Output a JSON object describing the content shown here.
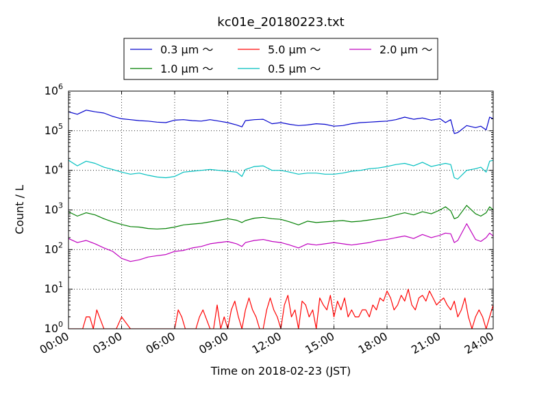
{
  "chart_data": {
    "type": "line",
    "title": "kc01e_20180223.txt",
    "xlabel": "Time on 2018-02-23 (JST)",
    "ylabel": "Count / L",
    "y_scale": "log",
    "xlim": [
      0,
      24
    ],
    "ylim": [
      1,
      1000000
    ],
    "grid": true,
    "legend_position": "top-center",
    "x_tick_labels": [
      "00:00",
      "03:00",
      "06:00",
      "09:00",
      "12:00",
      "15:00",
      "18:00",
      "21:00",
      "24:00"
    ],
    "y_tick_bases": [
      "10",
      "10",
      "10",
      "10",
      "10",
      "10",
      "10"
    ],
    "y_tick_exponents": [
      "0",
      "1",
      "2",
      "3",
      "4",
      "5",
      "6"
    ],
    "legend_order": [
      0,
      2,
      4,
      1,
      3
    ],
    "series": [
      {
        "name": "0.3 μm ～",
        "color": "#0000cc",
        "x": [
          0.0,
          0.5,
          1.0,
          1.5,
          2.0,
          2.5,
          3.0,
          3.5,
          4.0,
          4.5,
          5.0,
          5.5,
          6.0,
          6.5,
          7.0,
          7.5,
          8.0,
          8.5,
          9.0,
          9.5,
          9.8,
          10.0,
          10.5,
          11.0,
          11.5,
          12.0,
          12.5,
          13.0,
          13.5,
          14.0,
          14.5,
          15.0,
          15.5,
          16.0,
          16.5,
          17.0,
          17.5,
          18.0,
          18.5,
          19.0,
          19.5,
          20.0,
          20.5,
          21.0,
          21.3,
          21.6,
          21.8,
          22.0,
          22.5,
          23.0,
          23.3,
          23.6,
          23.8,
          24.0
        ],
        "y": [
          300000,
          260000,
          330000,
          300000,
          280000,
          230000,
          200000,
          190000,
          180000,
          175000,
          165000,
          160000,
          185000,
          190000,
          180000,
          175000,
          190000,
          175000,
          160000,
          140000,
          125000,
          180000,
          190000,
          195000,
          150000,
          160000,
          145000,
          135000,
          140000,
          150000,
          145000,
          130000,
          135000,
          150000,
          160000,
          165000,
          170000,
          175000,
          190000,
          220000,
          195000,
          210000,
          185000,
          200000,
          160000,
          190000,
          85000,
          90000,
          135000,
          120000,
          130000,
          105000,
          220000,
          200000
        ]
      },
      {
        "name": "0.5 μm ～",
        "color": "#00bfbf",
        "x": [
          0.0,
          0.5,
          1.0,
          1.5,
          2.0,
          2.5,
          3.0,
          3.5,
          4.0,
          4.5,
          5.0,
          5.5,
          6.0,
          6.5,
          7.0,
          7.5,
          8.0,
          8.5,
          9.0,
          9.5,
          9.8,
          10.0,
          10.5,
          11.0,
          11.5,
          12.0,
          12.5,
          13.0,
          13.5,
          14.0,
          14.5,
          15.0,
          15.5,
          16.0,
          16.5,
          17.0,
          17.5,
          18.0,
          18.5,
          19.0,
          19.5,
          20.0,
          20.5,
          21.0,
          21.3,
          21.6,
          21.8,
          22.0,
          22.5,
          23.0,
          23.3,
          23.6,
          23.8,
          24.0
        ],
        "y": [
          18000,
          13000,
          17000,
          15000,
          12000,
          10500,
          9000,
          8000,
          8500,
          7500,
          6800,
          6500,
          7000,
          9000,
          9500,
          10000,
          10500,
          10000,
          9500,
          9000,
          7000,
          10500,
          12500,
          13000,
          10000,
          10000,
          9000,
          8000,
          8500,
          8500,
          8000,
          8000,
          8500,
          9500,
          10000,
          11000,
          11500,
          12500,
          14000,
          15000,
          13000,
          16000,
          12500,
          14000,
          15000,
          14000,
          6500,
          6000,
          10000,
          11000,
          12000,
          9000,
          17000,
          18000
        ]
      },
      {
        "name": "1.0 μm ～",
        "color": "#007f00",
        "x": [
          0.0,
          0.5,
          1.0,
          1.5,
          2.0,
          2.5,
          3.0,
          3.5,
          4.0,
          4.5,
          5.0,
          5.5,
          6.0,
          6.5,
          7.0,
          7.5,
          8.0,
          8.5,
          9.0,
          9.5,
          9.8,
          10.0,
          10.5,
          11.0,
          11.5,
          12.0,
          12.5,
          13.0,
          13.5,
          14.0,
          14.5,
          15.0,
          15.5,
          16.0,
          16.5,
          17.0,
          17.5,
          18.0,
          18.5,
          19.0,
          19.5,
          20.0,
          20.5,
          21.0,
          21.3,
          21.6,
          21.8,
          22.0,
          22.5,
          23.0,
          23.3,
          23.6,
          23.8,
          24.0
        ],
        "y": [
          900,
          700,
          850,
          750,
          600,
          500,
          430,
          380,
          370,
          340,
          330,
          340,
          370,
          420,
          440,
          460,
          500,
          550,
          600,
          550,
          480,
          540,
          620,
          650,
          600,
          580,
          500,
          420,
          520,
          480,
          500,
          520,
          540,
          500,
          520,
          560,
          600,
          650,
          750,
          850,
          750,
          900,
          800,
          1000,
          1200,
          950,
          600,
          650,
          1300,
          800,
          700,
          850,
          1200,
          1000
        ]
      },
      {
        "name": "2.0 μm ～",
        "color": "#bf00bf",
        "x": [
          0.0,
          0.5,
          1.0,
          1.5,
          2.0,
          2.5,
          3.0,
          3.5,
          4.0,
          4.5,
          5.0,
          5.5,
          6.0,
          6.5,
          7.0,
          7.5,
          8.0,
          8.5,
          9.0,
          9.5,
          9.8,
          10.0,
          10.5,
          11.0,
          11.5,
          12.0,
          12.5,
          13.0,
          13.5,
          14.0,
          14.5,
          15.0,
          15.5,
          16.0,
          16.5,
          17.0,
          17.5,
          18.0,
          18.5,
          19.0,
          19.5,
          20.0,
          20.5,
          21.0,
          21.3,
          21.6,
          21.8,
          22.0,
          22.5,
          23.0,
          23.3,
          23.6,
          23.8,
          24.0
        ],
        "y": [
          190,
          150,
          170,
          140,
          110,
          90,
          60,
          50,
          55,
          65,
          70,
          75,
          90,
          95,
          110,
          120,
          140,
          150,
          160,
          140,
          120,
          150,
          170,
          180,
          160,
          150,
          130,
          110,
          140,
          130,
          140,
          150,
          140,
          130,
          140,
          150,
          170,
          180,
          200,
          220,
          190,
          240,
          200,
          230,
          260,
          250,
          150,
          170,
          450,
          180,
          160,
          200,
          260,
          220
        ]
      },
      {
        "name": "5.0 μm ～",
        "color": "#ff0000",
        "x": [
          0.0,
          0.5,
          0.8,
          1.0,
          1.2,
          1.4,
          1.6,
          2.0,
          2.4,
          2.5,
          2.7,
          3.0,
          3.5,
          4.0,
          4.5,
          5.0,
          5.5,
          6.0,
          6.2,
          6.4,
          6.6,
          7.0,
          7.2,
          7.4,
          7.6,
          8.0,
          8.2,
          8.4,
          8.6,
          8.8,
          9.0,
          9.2,
          9.4,
          9.6,
          9.8,
          10.0,
          10.2,
          10.4,
          10.6,
          10.8,
          11.0,
          11.2,
          11.4,
          11.6,
          11.8,
          12.0,
          12.2,
          12.4,
          12.6,
          12.8,
          13.0,
          13.2,
          13.4,
          13.6,
          13.8,
          14.0,
          14.2,
          14.4,
          14.6,
          14.8,
          15.0,
          15.2,
          15.4,
          15.6,
          15.8,
          16.0,
          16.2,
          16.4,
          16.6,
          16.8,
          17.0,
          17.2,
          17.4,
          17.6,
          17.8,
          18.0,
          18.2,
          18.4,
          18.6,
          18.8,
          19.0,
          19.2,
          19.4,
          19.6,
          19.8,
          20.0,
          20.2,
          20.4,
          20.6,
          20.8,
          21.0,
          21.2,
          21.4,
          21.6,
          21.8,
          22.0,
          22.2,
          22.4,
          22.6,
          22.8,
          23.0,
          23.2,
          23.4,
          23.6,
          23.8,
          24.0
        ],
        "y": [
          1,
          1,
          1,
          2,
          2,
          1,
          3,
          1,
          1,
          1,
          1,
          2,
          1,
          1,
          1,
          1,
          1,
          1,
          3,
          2,
          1,
          1,
          1,
          2,
          3,
          1,
          1,
          4,
          1,
          2,
          1,
          3,
          5,
          2,
          1,
          3,
          6,
          3,
          2,
          1,
          1,
          3,
          6,
          3,
          2,
          1,
          4,
          7,
          2,
          3,
          1,
          5,
          4,
          2,
          3,
          1,
          6,
          4,
          3,
          7,
          2,
          5,
          3,
          6,
          2,
          3,
          2,
          2,
          3,
          3,
          2,
          4,
          3,
          6,
          5,
          9,
          6,
          3,
          4,
          7,
          5,
          10,
          4,
          3,
          6,
          7,
          5,
          9,
          6,
          4,
          5,
          6,
          4,
          3,
          5,
          2,
          3,
          6,
          2,
          1,
          2,
          3,
          2,
          1,
          2,
          4
        ]
      }
    ]
  }
}
